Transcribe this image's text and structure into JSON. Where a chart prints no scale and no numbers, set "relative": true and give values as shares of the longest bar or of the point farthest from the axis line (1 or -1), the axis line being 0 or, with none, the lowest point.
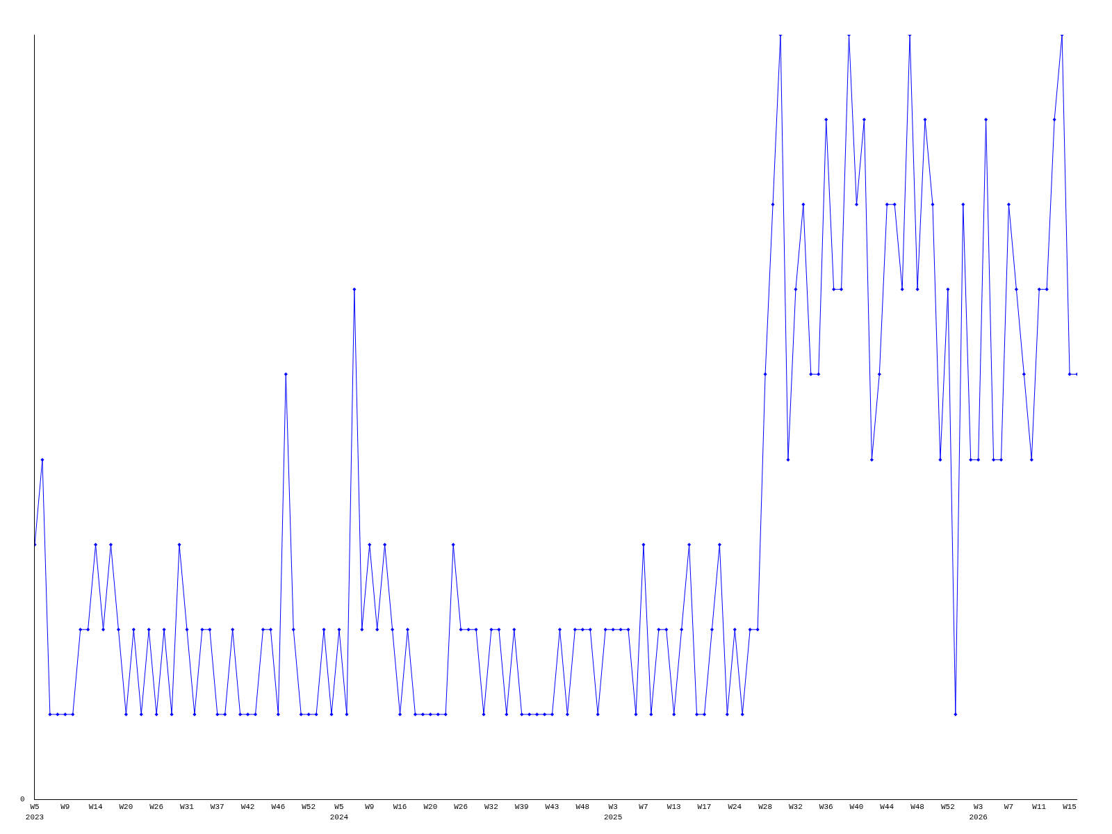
{
  "chart_data": {
    "type": "line",
    "relative": true,
    "color": "#0000ff",
    "marker": "diamond",
    "line_style": "solid",
    "grid": false,
    "legend": false,
    "annotations": [
      "0"
    ],
    "categories": [
      "W5\n2023",
      null,
      null,
      null,
      "W9",
      null,
      null,
      null,
      "W14",
      null,
      null,
      null,
      "W20",
      null,
      null,
      null,
      "W26",
      null,
      null,
      null,
      "W31",
      null,
      null,
      null,
      "W37",
      null,
      null,
      null,
      "W42",
      null,
      null,
      null,
      "W46",
      null,
      null,
      null,
      "W52",
      null,
      null,
      null,
      "W5\n2024",
      null,
      null,
      null,
      "W9",
      null,
      null,
      null,
      "W16",
      null,
      null,
      null,
      "W20",
      null,
      null,
      null,
      "W26",
      null,
      null,
      null,
      "W32",
      null,
      null,
      null,
      "W39",
      null,
      null,
      null,
      "W43",
      null,
      null,
      null,
      "W48",
      null,
      null,
      null,
      "W3\n2025",
      null,
      null,
      null,
      "W7",
      null,
      null,
      null,
      "W13",
      null,
      null,
      null,
      "W17",
      null,
      null,
      null,
      "W24",
      null,
      null,
      null,
      "W28",
      null,
      null,
      null,
      "W32",
      null,
      null,
      null,
      "W36",
      null,
      null,
      null,
      "W40",
      null,
      null,
      null,
      "W44",
      null,
      null,
      null,
      "W48",
      null,
      null,
      null,
      "W52",
      null,
      null,
      null,
      "W3\n2026",
      null,
      null,
      null,
      "W7",
      null,
      null,
      null,
      "W11",
      null,
      null,
      null,
      "W15",
      null
    ],
    "values": [
      0.333,
      0.444,
      0.111,
      0.111,
      0.111,
      0.111,
      0.222,
      0.222,
      0.333,
      0.222,
      0.333,
      0.222,
      0.111,
      0.222,
      0.111,
      0.222,
      0.111,
      0.222,
      0.111,
      0.333,
      0.222,
      0.111,
      0.222,
      0.222,
      0.111,
      0.111,
      0.222,
      0.111,
      0.111,
      0.111,
      0.222,
      0.222,
      0.111,
      0.556,
      0.222,
      0.111,
      0.111,
      0.111,
      0.222,
      0.111,
      0.222,
      0.111,
      0.667,
      0.222,
      0.333,
      0.222,
      0.333,
      0.222,
      0.111,
      0.222,
      0.111,
      0.111,
      0.111,
      0.111,
      0.111,
      0.333,
      0.222,
      0.222,
      0.222,
      0.111,
      0.222,
      0.222,
      0.111,
      0.222,
      0.111,
      0.111,
      0.111,
      0.111,
      0.111,
      0.222,
      0.111,
      0.222,
      0.222,
      0.222,
      0.111,
      0.222,
      0.222,
      0.222,
      0.222,
      0.111,
      0.333,
      0.111,
      0.222,
      0.222,
      0.111,
      0.222,
      0.333,
      0.111,
      0.111,
      0.222,
      0.333,
      0.111,
      0.222,
      0.111,
      0.222,
      0.222,
      0.556,
      0.778,
      1,
      0.444,
      0.667,
      0.778,
      0.556,
      0.556,
      0.889,
      0.667,
      0.667,
      1,
      0.778,
      0.889,
      0.444,
      0.556,
      0.778,
      0.778,
      0.667,
      1,
      0.667,
      0.889,
      0.778,
      0.444,
      0.667,
      0.111,
      0.778,
      0.444,
      0.444,
      0.889,
      0.444,
      0.444,
      0.778,
      0.667,
      0.556,
      0.444,
      0.667,
      0.667,
      0.889,
      1,
      0.556,
      0.556
    ]
  }
}
